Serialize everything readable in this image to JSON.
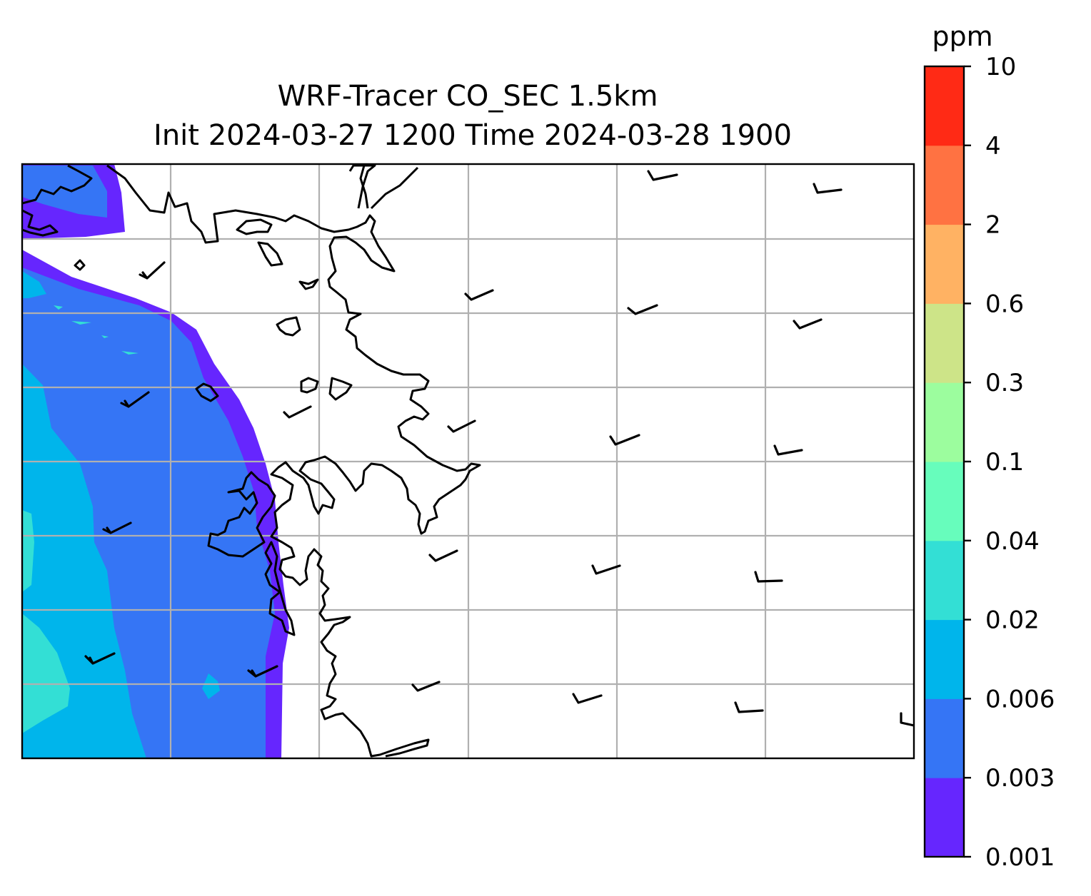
{
  "map": {
    "title_line1": "WRF-Tracer CO_SEC 1.5km",
    "title_line2": "Init 2024-03-27 1200 Time 2024-03-28 1900",
    "gridlines": true,
    "wind_barbs": true,
    "coastline_color": "#000000",
    "gridline_color": "#b0b0b0"
  },
  "colorbar": {
    "unit": "ppm",
    "levels": [
      "0.001",
      "0.003",
      "0.006",
      "0.02",
      "0.04",
      "0.1",
      "0.3",
      "0.6",
      "2",
      "4",
      "10"
    ],
    "colors": [
      "#6626fe",
      "#3575f5",
      "#00b5eb",
      "#33dfd5",
      "#67fdbc",
      "#9cfd9e",
      "#cde488",
      "#ffb263",
      "#ff7242",
      "#ff2a15"
    ]
  },
  "fields": {
    "level_0001_color": "#6626fe",
    "level_0003_color": "#3575f5",
    "level_0006_color": "#00b5eb",
    "level_002_color": "#33dfd5"
  }
}
